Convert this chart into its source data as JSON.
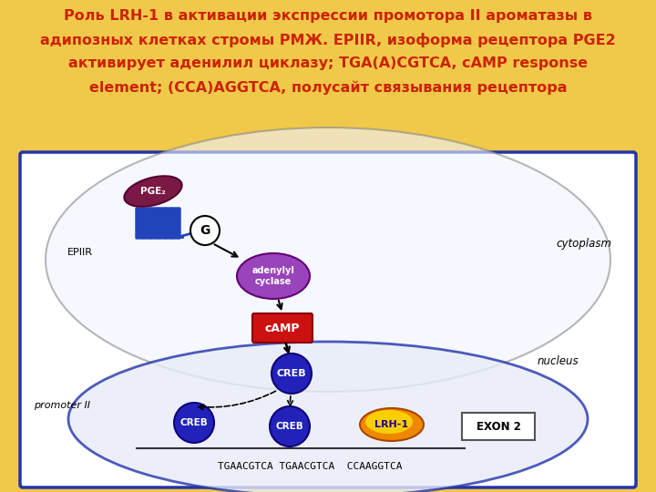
{
  "title_line1": "Роль LRH-1 в активации экспрессии промотора II ароматазы в",
  "title_line2": "адипозных клетках стромы РМЖ. EPIIR, изоформа рецептора PGE2",
  "title_line3": "активирует аденилил циклазу; TGA(A)CGTCA, cAMP response",
  "title_line4": "element; (CCA)AGGTCA, полусайт связывания рецептора",
  "title_color": "#cc2200",
  "bg_color": "#f0c84a",
  "diagram_bg": "#ffffff",
  "diagram_border_color": "#2233aa",
  "cytoplasm_label": "cytoplasm",
  "nucleus_label": "nucleus",
  "promoter_label": "promoter II",
  "epiir_label": "EPIIR",
  "dna_text": "TGAACGTCA TGAACGTCA  CCAAGGTCA",
  "exon2_label": "EXON 2",
  "pge_color": "#7a1a44",
  "receptor_color": "#2244bb",
  "adenylyl_color": "#9944bb",
  "camp_color": "#cc1111",
  "creb_color": "#2222bb",
  "lrh_fill_outer": "#ee8800",
  "lrh_fill_inner": "#ffee00",
  "lrh_text_color": "#220088",
  "cell_membrane_color": "#888888",
  "nucleus_edge_color": "#2233aa",
  "cell_ellipse_face": "#f0f4ff",
  "nucleus_ellipse_face": "#e8ecf8"
}
